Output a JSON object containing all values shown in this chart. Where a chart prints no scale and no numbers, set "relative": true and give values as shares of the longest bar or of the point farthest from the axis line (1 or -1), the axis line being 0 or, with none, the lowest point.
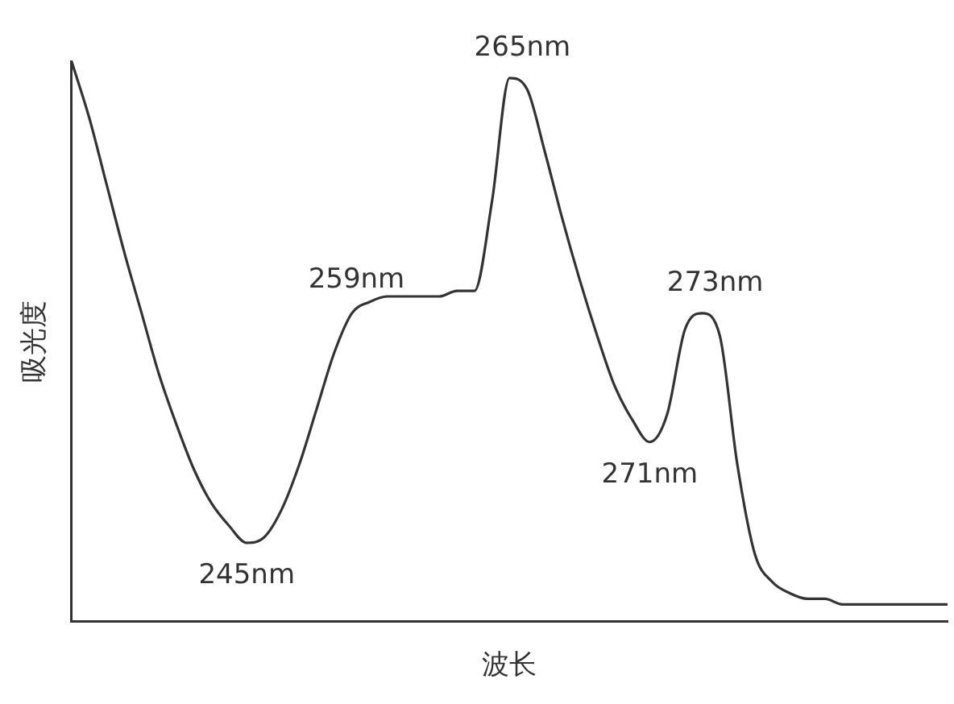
{
  "chart_data": {
    "type": "line",
    "relative": true,
    "xlabel": "波长",
    "ylabel": "吸光度",
    "categories": [
      null,
      null,
      null,
      null,
      null,
      null,
      null,
      null,
      null,
      null,
      null,
      null,
      null,
      null,
      null,
      null,
      null,
      null,
      null,
      null,
      null,
      null,
      null,
      null,
      null,
      null,
      null,
      null,
      null,
      null,
      null,
      null,
      null,
      null,
      null,
      null,
      null,
      null,
      null,
      null,
      null,
      null,
      null,
      null,
      null,
      null,
      null,
      null,
      null,
      null,
      null
    ],
    "series": [
      {
        "color": "#333333",
        "values": [
          1,
          0.9,
          0.78,
          0.66,
          0.55,
          0.44,
          0.35,
          0.27,
          0.21,
          0.17,
          0.14,
          0.15,
          0.2,
          0.28,
          0.38,
          0.48,
          0.55,
          0.57,
          0.58,
          0.58,
          0.58,
          0.58,
          0.59,
          0.59,
          0.75,
          0.97,
          0.95,
          0.84,
          0.72,
          0.61,
          0.51,
          0.42,
          0.36,
          0.32,
          0.37,
          0.52,
          0.55,
          0.51,
          0.28,
          0.12,
          0.07,
          0.05,
          0.04,
          0.04,
          0.03,
          0.03,
          0.03,
          0.03,
          0.03,
          0.03,
          0.03
        ]
      }
    ],
    "annotations": [
      {
        "text": "245nm",
        "y": 0.14
      },
      {
        "text": "259nm",
        "y": 0.57
      },
      {
        "text": "265nm",
        "y": 0.97
      },
      {
        "text": "271nm",
        "y": 0.32
      },
      {
        "text": "273nm",
        "y": 0.55
      }
    ],
    "grid": false,
    "legend": false,
    "marker": "none",
    "line_style": "solid"
  }
}
